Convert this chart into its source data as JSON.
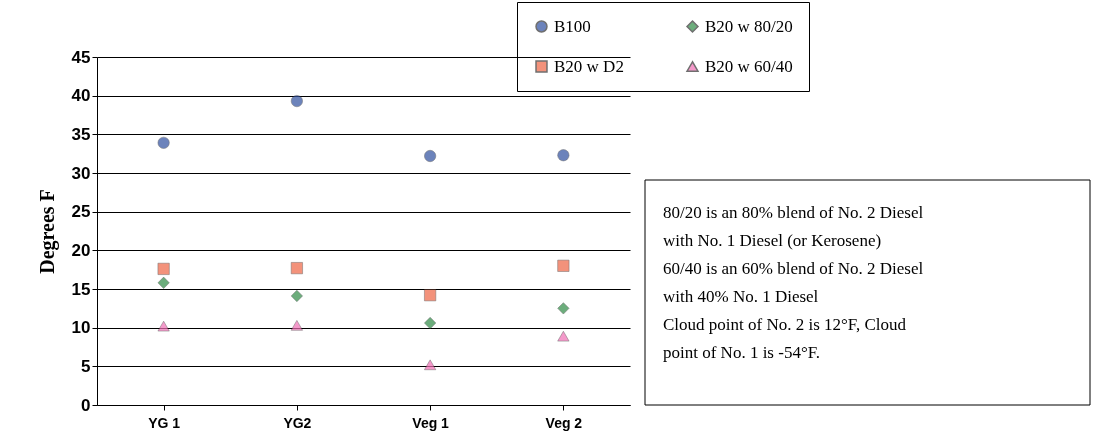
{
  "chart_data": {
    "type": "scatter",
    "ylabel": "Degrees F",
    "categories": [
      "YG 1",
      "YG2",
      "Veg 1",
      "Veg 2"
    ],
    "series": [
      {
        "name": "B100",
        "color": "#2f4f9f",
        "marker": "circle",
        "values": [
          33.9,
          39.3,
          32.2,
          32.3
        ]
      },
      {
        "name": "B20 w D2",
        "color": "#ef6444",
        "marker": "square",
        "values": [
          17.6,
          17.7,
          14.2,
          18.0
        ]
      },
      {
        "name": "B20 w 80/20",
        "color": "#2e8b45",
        "marker": "diamond",
        "values": [
          15.8,
          14.1,
          10.6,
          12.5
        ]
      },
      {
        "name": "B20 w 60/40",
        "color": "#f06eb4",
        "marker": "triangle",
        "values": [
          10.2,
          10.3,
          5.2,
          8.9
        ]
      }
    ],
    "ylim": [
      0,
      45
    ],
    "yticks": [
      0,
      5,
      10,
      15,
      20,
      25,
      30,
      35,
      40,
      45
    ],
    "grid": "y",
    "legend": "top right",
    "annotations": [
      "80/20 is an 80% blend of No. 2 Diesel",
      "with No. 1 Diesel (or Kerosene)",
      "60/40 is an 60% blend of No. 2 Diesel",
      "with 40% No. 1 Diesel",
      "Cloud point of No. 2 is 12°F, Cloud",
      "point of No. 1 is -54°F."
    ]
  }
}
